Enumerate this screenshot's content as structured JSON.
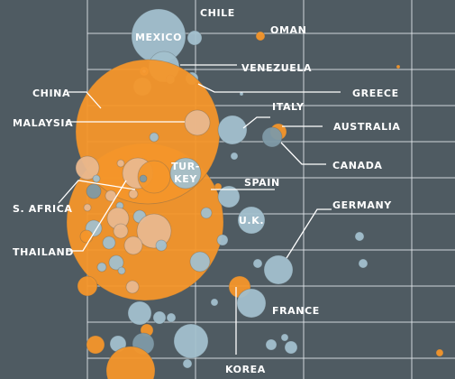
{
  "chart_data": {
    "type": "scatter",
    "title": "",
    "xlabel": "",
    "ylabel": "",
    "grid": true,
    "colors": {
      "background": "#4f5b62",
      "grid": "#e6ebee",
      "orange": "#f4962a",
      "orange_light": "#e9b88e",
      "blue": "#a2c0ce",
      "blue_dark": "#7e9aa6",
      "label": "#ffffff",
      "leader": "#ffffff"
    },
    "labels": [
      {
        "name": "CHILE",
        "text": "CHILE"
      },
      {
        "name": "OMAN",
        "text": "OMAN"
      },
      {
        "name": "MEXICO",
        "text": "MEXICO"
      },
      {
        "name": "VENEZUELA",
        "text": "VENEZUELA"
      },
      {
        "name": "GREECE",
        "text": "GREECE"
      },
      {
        "name": "CHINA",
        "text": "CHINA"
      },
      {
        "name": "ITALY",
        "text": "ITALY"
      },
      {
        "name": "MALAYSIA",
        "text": "MALAYSIA"
      },
      {
        "name": "AUSTRALIA",
        "text": "AUSTRALIA"
      },
      {
        "name": "CANADA",
        "text": "CANADA"
      },
      {
        "name": "TURKEY",
        "text": "TUR-\nKEY"
      },
      {
        "name": "SPAIN",
        "text": "SPAIN"
      },
      {
        "name": "S. AFRICA",
        "text": "S. AFRICA"
      },
      {
        "name": "GERMANY",
        "text": "GERMANY"
      },
      {
        "name": "U.K.",
        "text": "U.K."
      },
      {
        "name": "THAILAND",
        "text": "THAILAND"
      },
      {
        "name": "FRANCE",
        "text": "FRANCE"
      },
      {
        "name": "KOREA",
        "text": "KOREA"
      }
    ]
  }
}
